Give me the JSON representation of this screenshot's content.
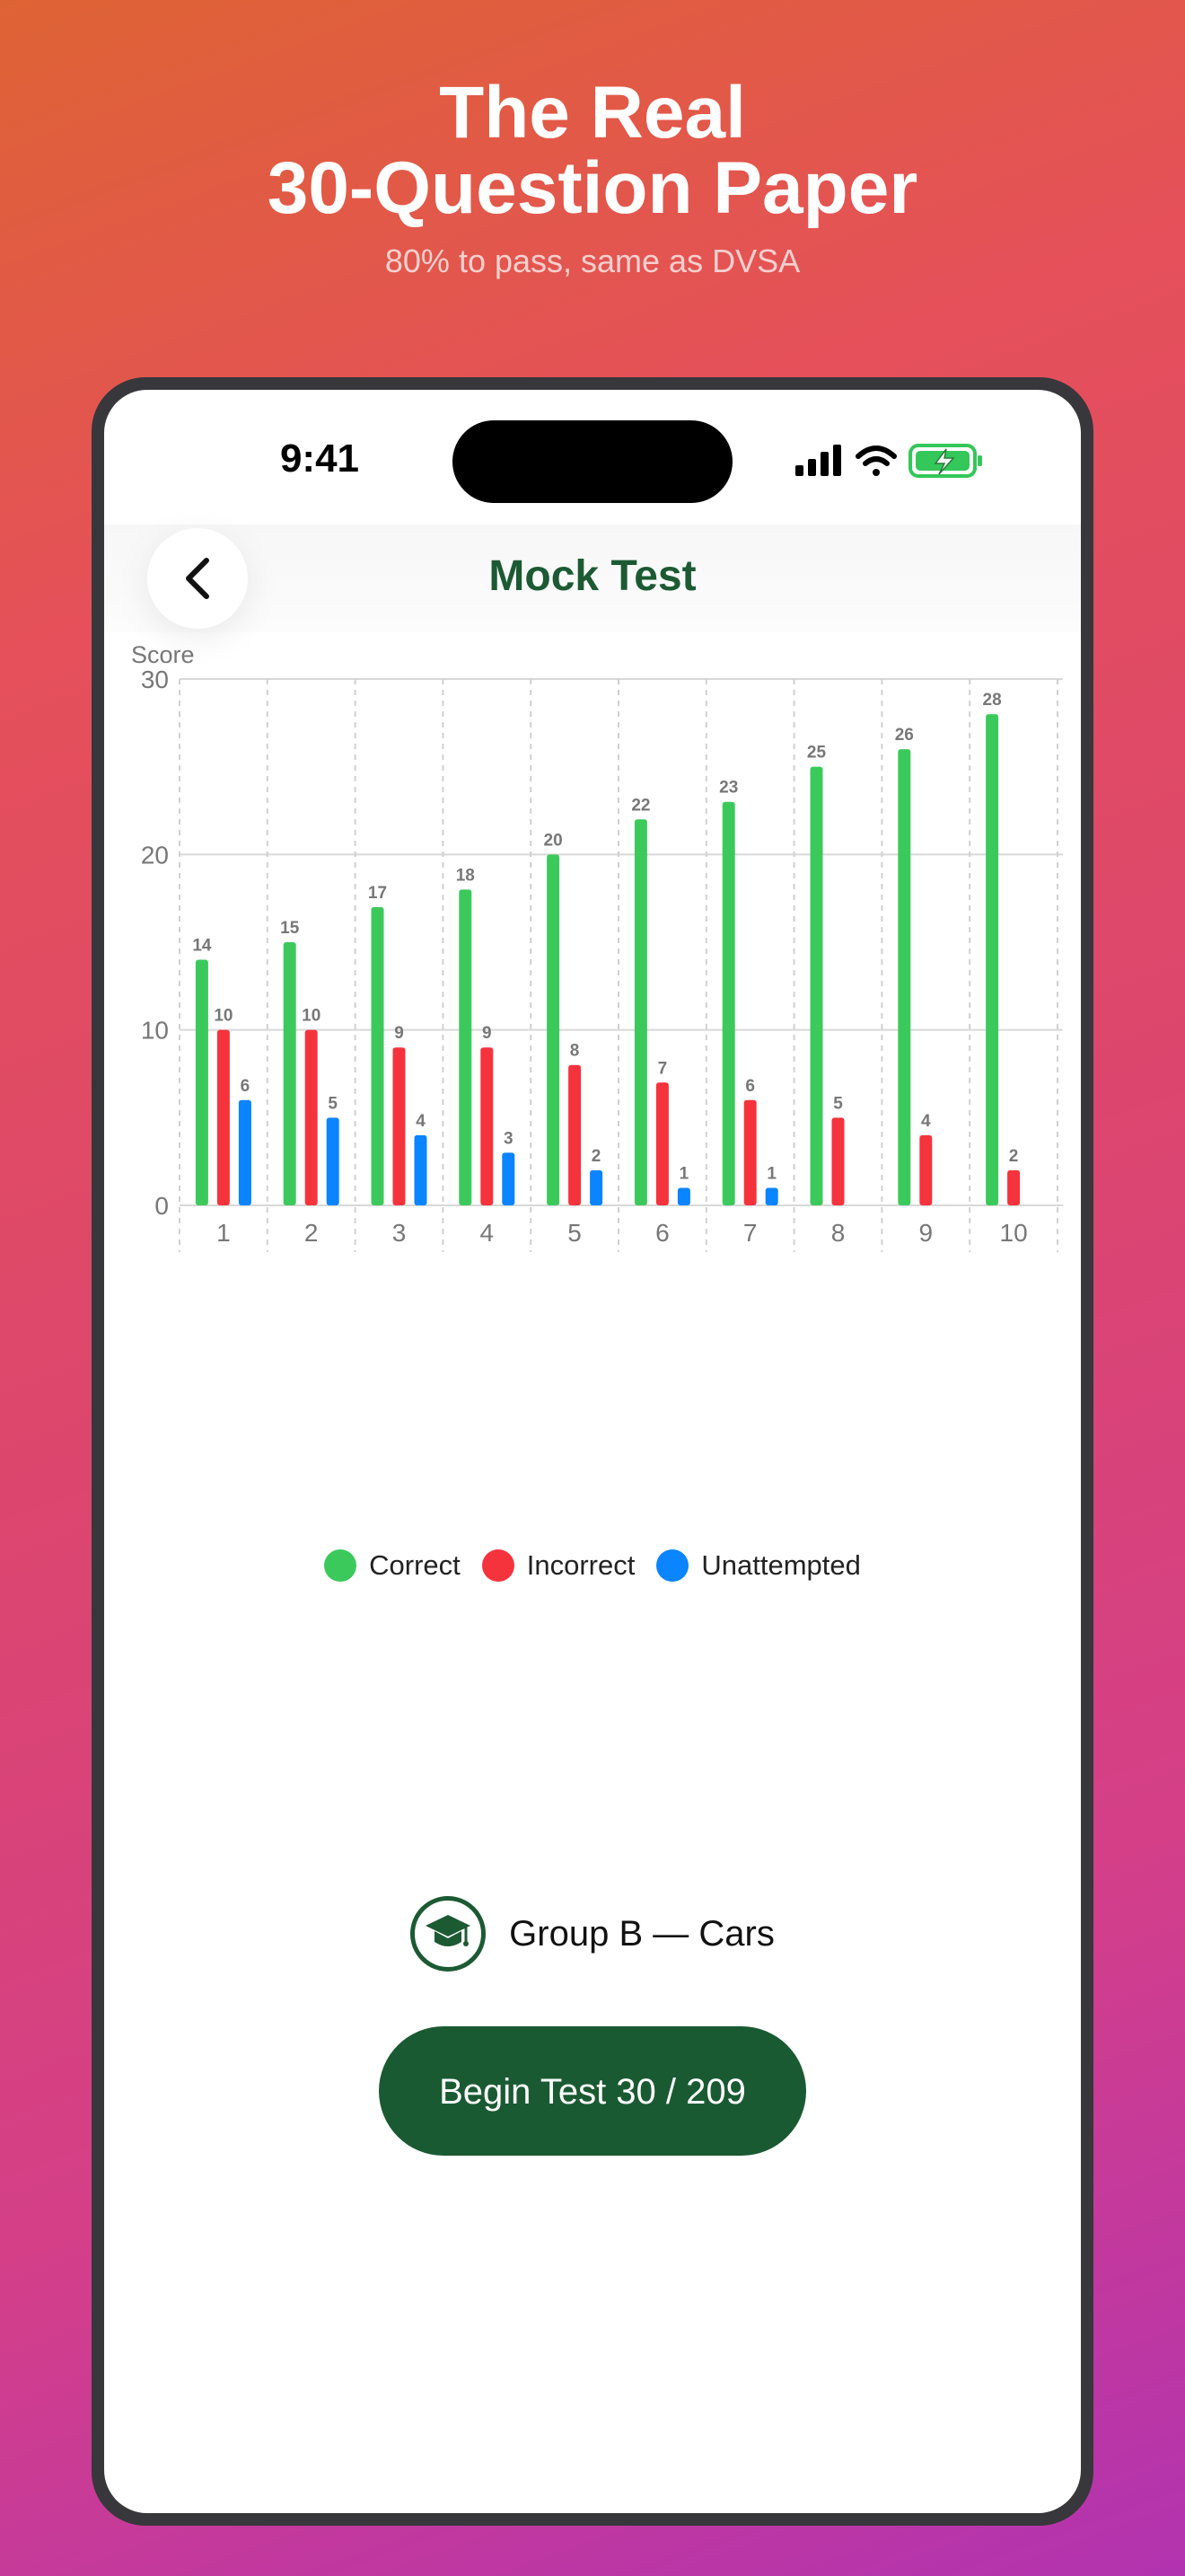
{
  "marketing": {
    "headline_line1": "The Real",
    "headline_line2": "30-Question Paper",
    "subline": "80% to pass, same as DVSA"
  },
  "status_bar": {
    "time": "9:41"
  },
  "nav": {
    "title": "Mock Test",
    "back_icon": "chevron-left-icon"
  },
  "chart_data": {
    "type": "bar",
    "ylabel": "Score",
    "xlabel": "",
    "ylim": [
      0,
      30
    ],
    "yticks": [
      0,
      10,
      20,
      30
    ],
    "categories": [
      "1",
      "2",
      "3",
      "4",
      "5",
      "6",
      "7",
      "8",
      "9",
      "10"
    ],
    "series": [
      {
        "name": "Correct",
        "color": "#3cc95c",
        "values": [
          14,
          15,
          17,
          18,
          20,
          22,
          23,
          25,
          26,
          28
        ]
      },
      {
        "name": "Incorrect",
        "color": "#f5333d",
        "values": [
          10,
          10,
          9,
          9,
          8,
          7,
          6,
          5,
          4,
          2
        ]
      },
      {
        "name": "Unattempted",
        "color": "#0a84ff",
        "values": [
          6,
          5,
          4,
          3,
          2,
          1,
          1,
          null,
          null,
          null
        ]
      }
    ],
    "grid": true,
    "legend_position": "bottom-center"
  },
  "group": {
    "icon": "graduation-cap-icon",
    "label": "Group B — Cars"
  },
  "begin_button": {
    "label": "Begin Test 30 / 209"
  },
  "colors": {
    "brand_green": "#1a5a32"
  }
}
